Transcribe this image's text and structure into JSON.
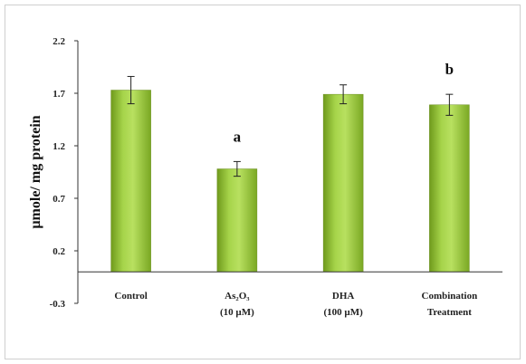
{
  "chart_data": {
    "type": "bar",
    "title": "",
    "xlabel": "",
    "ylabel": "µmole/ mg protein",
    "ylim": [
      -0.3,
      2.2
    ],
    "yticks": [
      "2.2",
      "1.7",
      "1.2",
      "0.7",
      "0.2",
      "-0.3"
    ],
    "ytick_values": [
      2.2,
      1.7,
      1.2,
      0.7,
      0.2,
      -0.3
    ],
    "categories": [
      [
        "Control"
      ],
      [
        "As₂O₃",
        "(10 µM)"
      ],
      [
        "DHA",
        "(100 µM)"
      ],
      [
        "Combination",
        "Treatment"
      ]
    ],
    "values": [
      1.73,
      0.98,
      1.69,
      1.59
    ],
    "errors": [
      0.13,
      0.07,
      0.09,
      0.1
    ],
    "annotations": [
      "",
      "a",
      "",
      "b"
    ],
    "bar_color": "#8fbf2e",
    "grid": false,
    "legend": "none"
  }
}
